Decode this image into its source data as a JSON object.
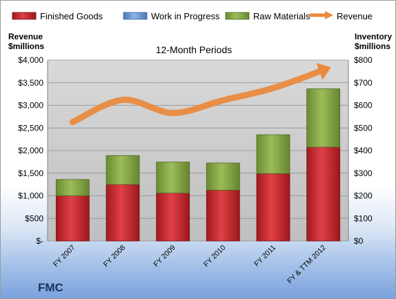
{
  "company": "FMC",
  "chart_data": {
    "type": "bar",
    "stacked": true,
    "subtitle": "12-Month Periods",
    "categories": [
      "FY 2007",
      "FY 2008",
      "FY 2009",
      "FY 2010",
      "FY 2011",
      "FY & TTM 2012"
    ],
    "left_axis": {
      "title_line1": "Revenue",
      "title_line2": "$millions",
      "ticks": [
        "$-",
        "$500",
        "$1,000",
        "$1,500",
        "$2,000",
        "$2,500",
        "$3,000",
        "$3,500",
        "$4,000"
      ],
      "range": [
        0,
        4000
      ]
    },
    "right_axis": {
      "title_line1": "Inventory",
      "title_line2": "$millions",
      "ticks": [
        "$0",
        "$100",
        "$200",
        "$300",
        "$400",
        "$500",
        "$600",
        "$700",
        "$800"
      ],
      "range": [
        0,
        800
      ]
    },
    "series": [
      {
        "name": "Finished Goods",
        "axis": "right",
        "color": "#c0262c",
        "values": [
          200,
          250,
          212,
          225,
          298,
          415
        ]
      },
      {
        "name": "Work in Progress",
        "axis": "right",
        "color": "#5f8fd0",
        "values": [
          0,
          0,
          0,
          0,
          0,
          0
        ]
      },
      {
        "name": "Raw Materials",
        "axis": "right",
        "color": "#7ea040",
        "values": [
          72,
          128,
          137,
          120,
          172,
          258
        ]
      },
      {
        "name": "Revenue",
        "axis": "left",
        "type": "line",
        "color": "#e98a3e",
        "values": [
          2630,
          3120,
          2830,
          3110,
          3380,
          3780
        ]
      }
    ],
    "grid": true,
    "legend": "top"
  }
}
